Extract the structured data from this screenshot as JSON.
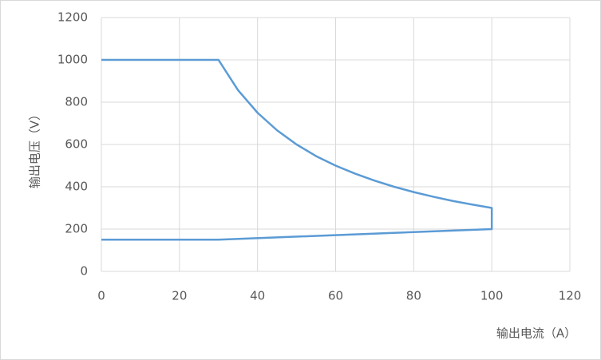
{
  "chart_data": {
    "type": "line",
    "x_label": "输出电流（A）",
    "y_label": "输出电压（V）",
    "x": [
      0,
      30,
      35,
      40,
      45,
      50,
      55,
      60,
      65,
      70,
      75,
      80,
      85,
      90,
      95,
      100,
      100,
      30,
      0
    ],
    "values": [
      1000,
      1000,
      857,
      750,
      667,
      600,
      545,
      500,
      462,
      429,
      400,
      375,
      353,
      333,
      316,
      300,
      200,
      150,
      150
    ],
    "color": "#5b9bd5",
    "xlim": [
      0,
      120
    ],
    "xticks": [
      0,
      20,
      40,
      60,
      80,
      100,
      120
    ],
    "ylim": [
      0,
      1200
    ],
    "yticks": [
      0,
      200,
      400,
      600,
      800,
      1000,
      1200
    ],
    "grid": true
  }
}
